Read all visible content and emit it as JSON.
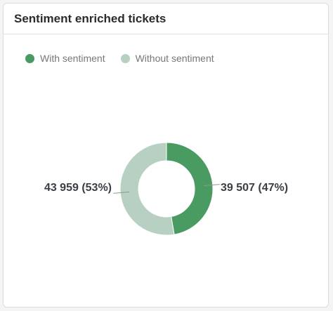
{
  "card": {
    "title": "Sentiment enriched tickets"
  },
  "chart_data": {
    "type": "pie",
    "style": "donut",
    "legend_position": "top-left",
    "slices": [
      {
        "name": "With sentiment",
        "value": 39507,
        "percent": 47,
        "label": "39 507 (47%)",
        "color": "#4a9b62"
      },
      {
        "name": "Without sentiment",
        "value": 43959,
        "percent": 53,
        "label": "43 959 (53%)",
        "color": "#b7d0c2"
      }
    ]
  }
}
